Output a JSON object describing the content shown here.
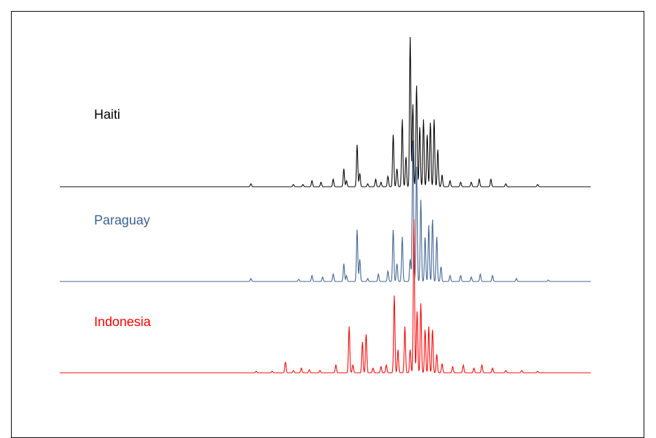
{
  "chart_data": {
    "type": "line",
    "title": "",
    "xlabel": "",
    "ylabel": "",
    "grid": false,
    "stacked_offset": true,
    "series": [
      {
        "name": "Haiti",
        "color": "#000000",
        "peaks": [
          {
            "x": 0.36,
            "h": 0.02
          },
          {
            "x": 0.44,
            "h": 0.015
          },
          {
            "x": 0.458,
            "h": 0.015
          },
          {
            "x": 0.475,
            "h": 0.04
          },
          {
            "x": 0.492,
            "h": 0.03
          },
          {
            "x": 0.515,
            "h": 0.05
          },
          {
            "x": 0.535,
            "h": 0.12
          },
          {
            "x": 0.54,
            "h": 0.04
          },
          {
            "x": 0.56,
            "h": 0.28
          },
          {
            "x": 0.565,
            "h": 0.09
          },
          {
            "x": 0.58,
            "h": 0.02
          },
          {
            "x": 0.595,
            "h": 0.05
          },
          {
            "x": 0.605,
            "h": 0.03
          },
          {
            "x": 0.618,
            "h": 0.07
          },
          {
            "x": 0.628,
            "h": 0.35
          },
          {
            "x": 0.635,
            "h": 0.12
          },
          {
            "x": 0.645,
            "h": 0.45
          },
          {
            "x": 0.652,
            "h": 0.2
          },
          {
            "x": 0.66,
            "h": 1.0
          },
          {
            "x": 0.665,
            "h": 0.55
          },
          {
            "x": 0.672,
            "h": 0.68
          },
          {
            "x": 0.678,
            "h": 0.4
          },
          {
            "x": 0.685,
            "h": 0.45
          },
          {
            "x": 0.692,
            "h": 0.35
          },
          {
            "x": 0.698,
            "h": 0.43
          },
          {
            "x": 0.705,
            "h": 0.45
          },
          {
            "x": 0.712,
            "h": 0.25
          },
          {
            "x": 0.72,
            "h": 0.08
          },
          {
            "x": 0.735,
            "h": 0.04
          },
          {
            "x": 0.755,
            "h": 0.03
          },
          {
            "x": 0.775,
            "h": 0.03
          },
          {
            "x": 0.79,
            "h": 0.05
          },
          {
            "x": 0.812,
            "h": 0.05
          },
          {
            "x": 0.84,
            "h": 0.02
          },
          {
            "x": 0.9,
            "h": 0.015
          }
        ]
      },
      {
        "name": "Paraguay",
        "color": "#3d6191",
        "peaks": [
          {
            "x": 0.36,
            "h": 0.02
          },
          {
            "x": 0.45,
            "h": 0.015
          },
          {
            "x": 0.475,
            "h": 0.04
          },
          {
            "x": 0.495,
            "h": 0.03
          },
          {
            "x": 0.515,
            "h": 0.05
          },
          {
            "x": 0.535,
            "h": 0.12
          },
          {
            "x": 0.54,
            "h": 0.04
          },
          {
            "x": 0.56,
            "h": 0.35
          },
          {
            "x": 0.565,
            "h": 0.15
          },
          {
            "x": 0.58,
            "h": 0.02
          },
          {
            "x": 0.6,
            "h": 0.05
          },
          {
            "x": 0.618,
            "h": 0.07
          },
          {
            "x": 0.628,
            "h": 0.35
          },
          {
            "x": 0.635,
            "h": 0.12
          },
          {
            "x": 0.645,
            "h": 0.3
          },
          {
            "x": 0.66,
            "h": 0.15
          },
          {
            "x": 0.665,
            "h": 0.95
          },
          {
            "x": 0.672,
            "h": 0.78
          },
          {
            "x": 0.68,
            "h": 0.55
          },
          {
            "x": 0.688,
            "h": 0.3
          },
          {
            "x": 0.695,
            "h": 0.38
          },
          {
            "x": 0.702,
            "h": 0.42
          },
          {
            "x": 0.71,
            "h": 0.3
          },
          {
            "x": 0.718,
            "h": 0.1
          },
          {
            "x": 0.735,
            "h": 0.04
          },
          {
            "x": 0.755,
            "h": 0.04
          },
          {
            "x": 0.775,
            "h": 0.03
          },
          {
            "x": 0.792,
            "h": 0.05
          },
          {
            "x": 0.815,
            "h": 0.04
          },
          {
            "x": 0.86,
            "h": 0.02
          },
          {
            "x": 0.92,
            "h": 0.01
          }
        ]
      },
      {
        "name": "Indonesia",
        "color": "#ff0000",
        "peaks": [
          {
            "x": 0.37,
            "h": 0.01
          },
          {
            "x": 0.4,
            "h": 0.01
          },
          {
            "x": 0.425,
            "h": 0.07
          },
          {
            "x": 0.44,
            "h": 0.015
          },
          {
            "x": 0.455,
            "h": 0.03
          },
          {
            "x": 0.47,
            "h": 0.02
          },
          {
            "x": 0.49,
            "h": 0.015
          },
          {
            "x": 0.52,
            "h": 0.05
          },
          {
            "x": 0.545,
            "h": 0.3
          },
          {
            "x": 0.552,
            "h": 0.05
          },
          {
            "x": 0.57,
            "h": 0.2
          },
          {
            "x": 0.577,
            "h": 0.25
          },
          {
            "x": 0.59,
            "h": 0.03
          },
          {
            "x": 0.605,
            "h": 0.04
          },
          {
            "x": 0.615,
            "h": 0.05
          },
          {
            "x": 0.63,
            "h": 0.5
          },
          {
            "x": 0.637,
            "h": 0.15
          },
          {
            "x": 0.65,
            "h": 0.3
          },
          {
            "x": 0.66,
            "h": 0.15
          },
          {
            "x": 0.667,
            "h": 1.0
          },
          {
            "x": 0.673,
            "h": 0.4
          },
          {
            "x": 0.68,
            "h": 0.45
          },
          {
            "x": 0.688,
            "h": 0.28
          },
          {
            "x": 0.695,
            "h": 0.3
          },
          {
            "x": 0.702,
            "h": 0.28
          },
          {
            "x": 0.71,
            "h": 0.12
          },
          {
            "x": 0.72,
            "h": 0.06
          },
          {
            "x": 0.74,
            "h": 0.04
          },
          {
            "x": 0.76,
            "h": 0.05
          },
          {
            "x": 0.78,
            "h": 0.03
          },
          {
            "x": 0.795,
            "h": 0.05
          },
          {
            "x": 0.815,
            "h": 0.03
          },
          {
            "x": 0.84,
            "h": 0.015
          },
          {
            "x": 0.87,
            "h": 0.015
          },
          {
            "x": 0.9,
            "h": 0.01
          }
        ]
      }
    ]
  }
}
